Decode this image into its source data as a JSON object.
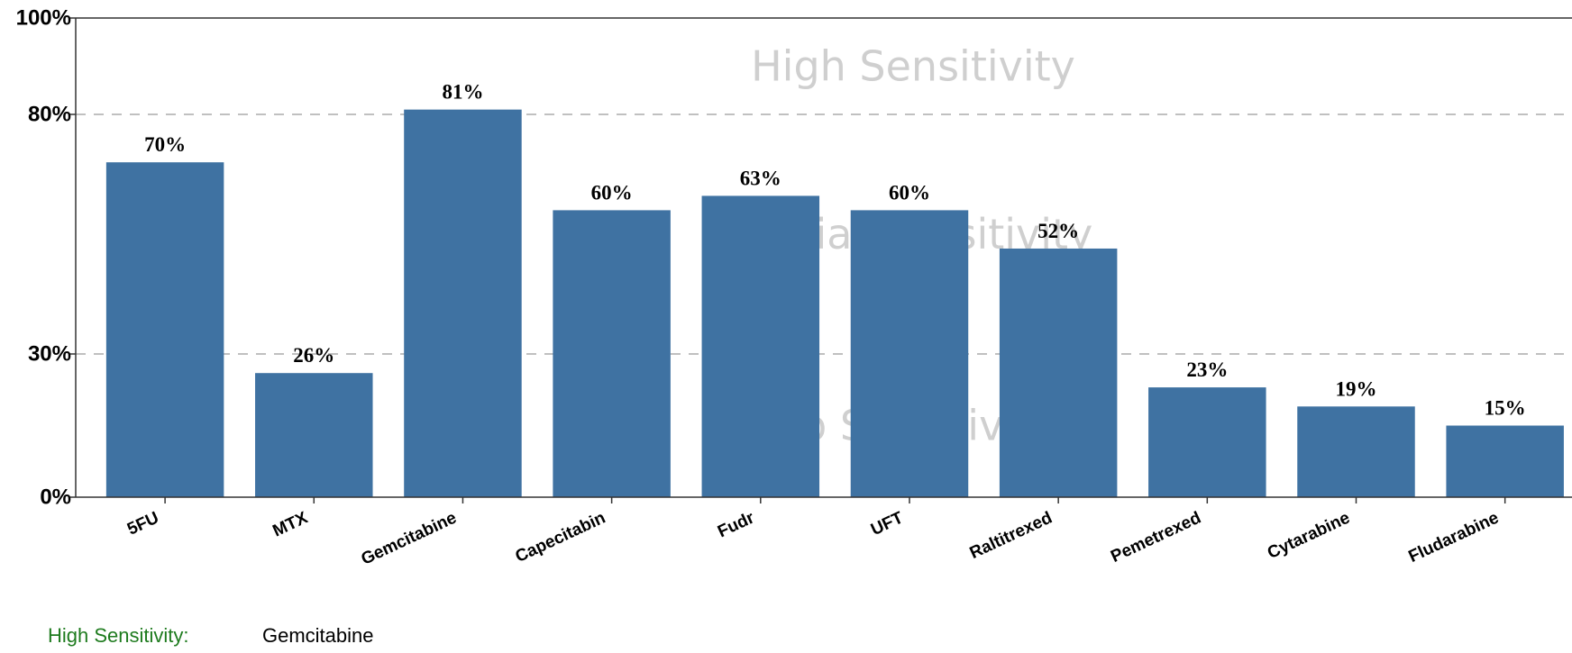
{
  "chart_data": {
    "type": "bar",
    "categories": [
      "5FU",
      "MTX",
      "Gemcitabine",
      "Capecitabin",
      "Fudr",
      "UFT",
      "Raltitrexed",
      "Pemetrexed",
      "Cytarabine",
      "Fludarabine"
    ],
    "values": [
      70,
      26,
      81,
      60,
      63,
      60,
      52,
      23,
      19,
      15
    ],
    "value_labels": [
      "70%",
      "26%",
      "81%",
      "60%",
      "63%",
      "60%",
      "52%",
      "23%",
      "19%",
      "15%"
    ],
    "y_ticks": [
      {
        "value": 0,
        "label": "0%"
      },
      {
        "value": 30,
        "label": "30%"
      },
      {
        "value": 80,
        "label": "80%"
      },
      {
        "value": 100,
        "label": "100%"
      }
    ],
    "ylim": [
      0,
      100
    ],
    "threshold_lines": [
      30,
      80
    ],
    "zones": [
      {
        "label": "High Sensitivity",
        "center": 90
      },
      {
        "label": "Partial Sensitivity",
        "center": 55
      },
      {
        "label": "No Sensitivity",
        "center": 15
      }
    ],
    "bar_color": "#3f72a2",
    "zone_label_color": "#cfcfcf",
    "grid": false
  },
  "footer": {
    "label": "High Sensitivity:",
    "value": "Gemcitabine",
    "label_color": "#1e7b1e"
  }
}
